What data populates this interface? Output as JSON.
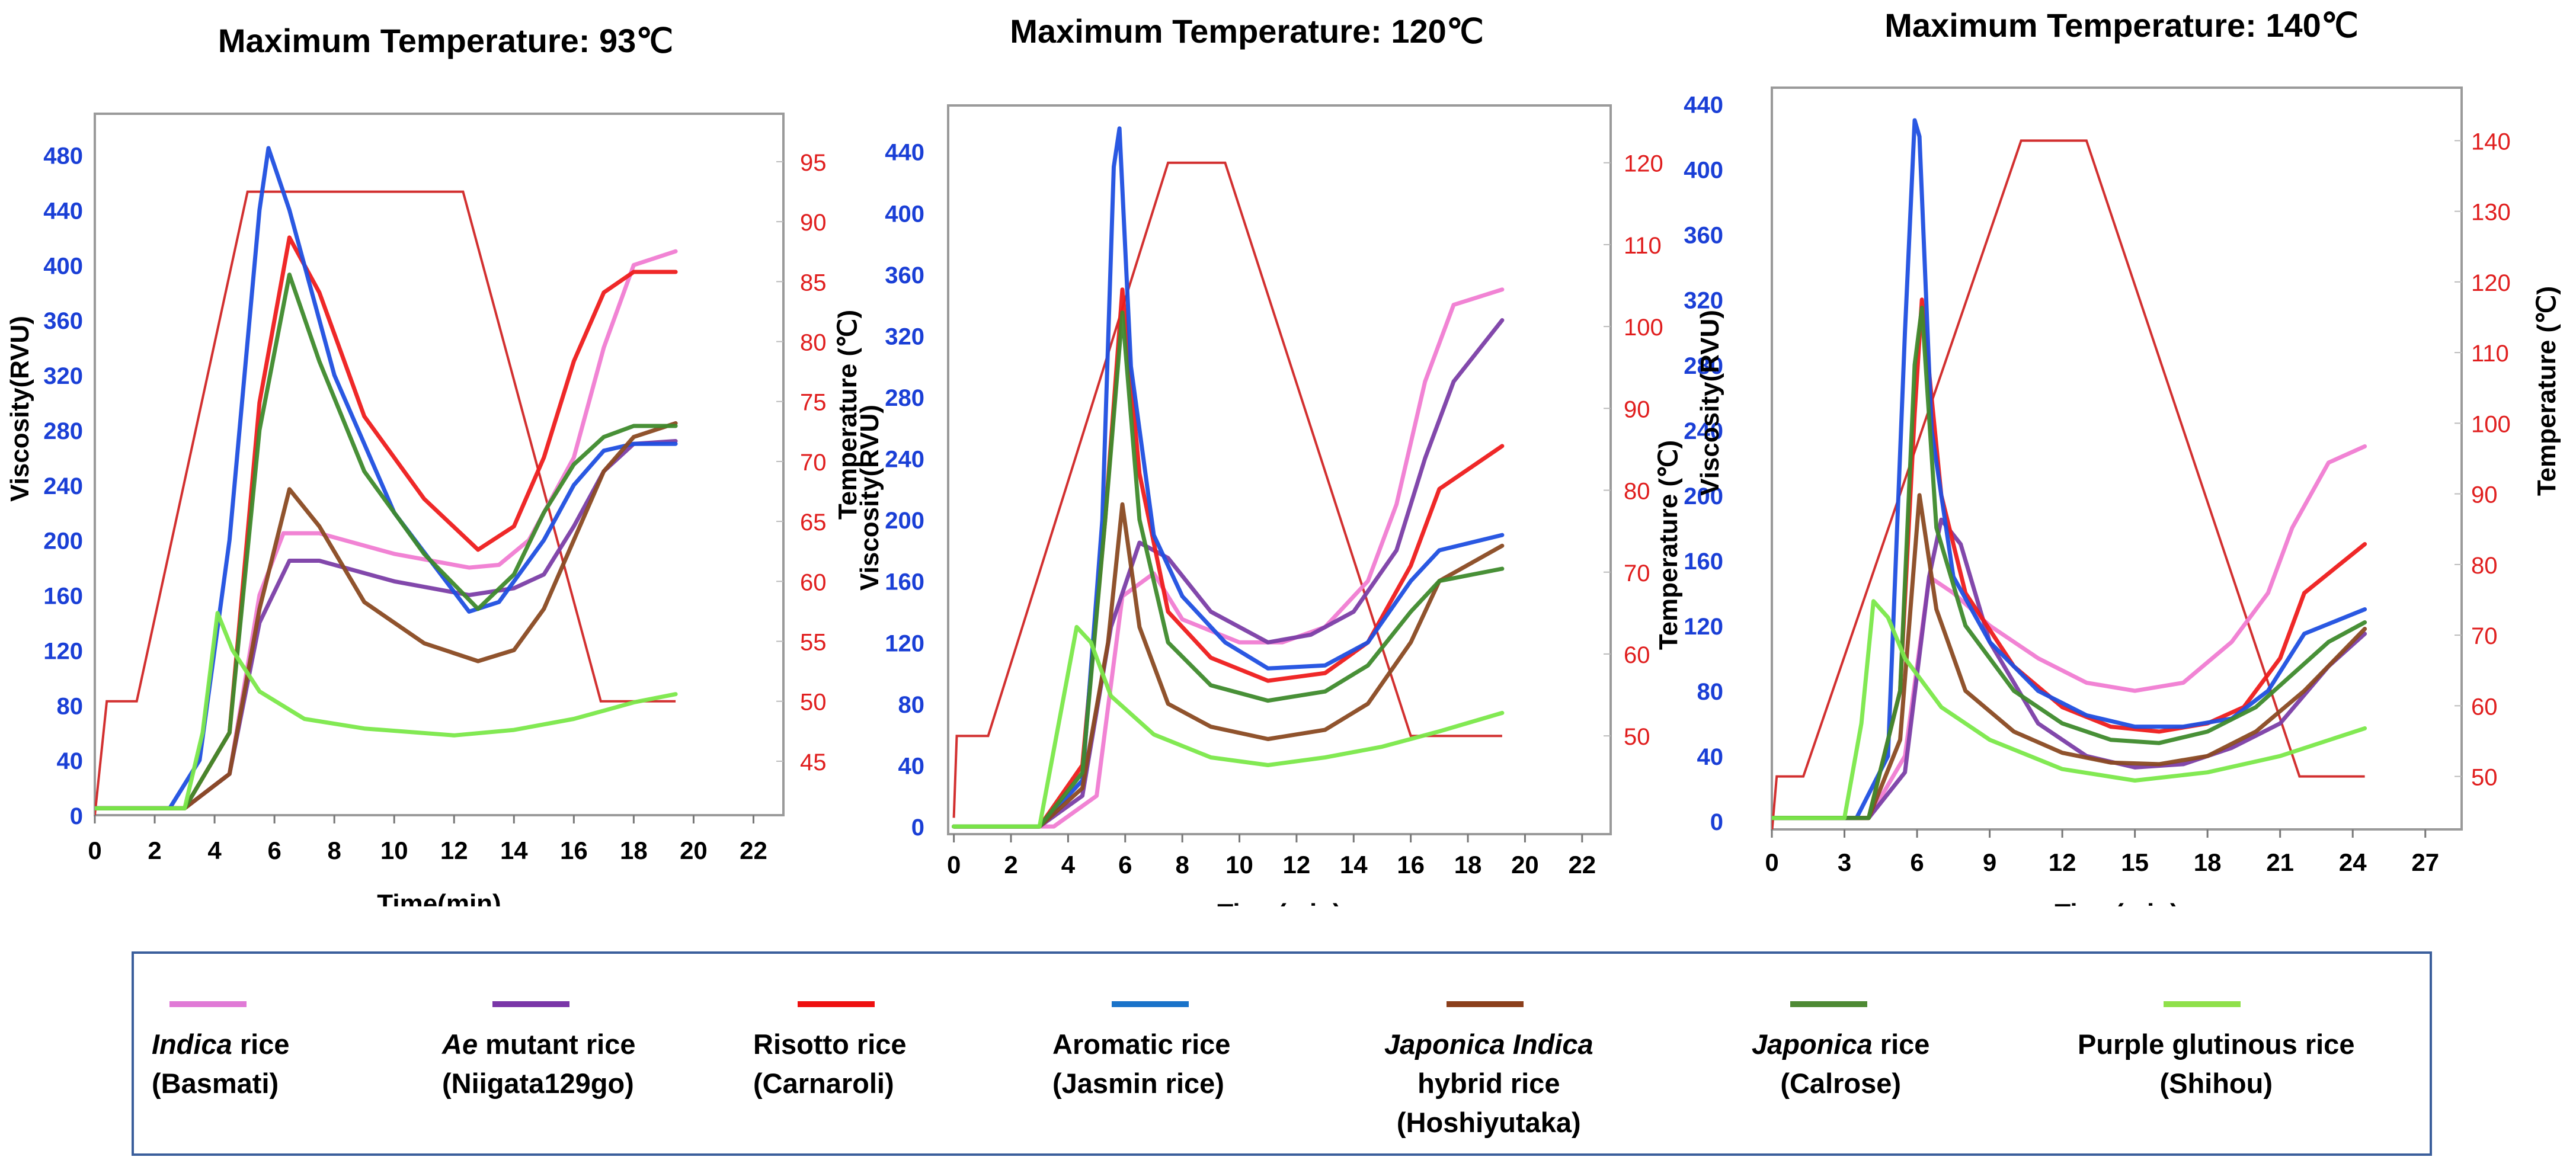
{
  "colors": {
    "indica": "#f07cd2",
    "ae_mutant": "#7b3ea6",
    "risotto": "#ee1c1c",
    "aromatic": "#1f4fe0",
    "hybrid": "#8a4a22",
    "japonica": "#3e8a2c",
    "purple": "#7be84a",
    "temperature": "#d23030",
    "left_axis": "#1a3fd6",
    "right_axis": "#e01e1e",
    "frame": "#9a9a9a"
  },
  "legend": [
    {
      "key": "indica",
      "color": "#e07ad6",
      "line1_italic": "Indica",
      "line1_rest": " rice",
      "line2": "(Basmati)",
      "line3": ""
    },
    {
      "key": "ae_mutant",
      "color": "#7a36a8",
      "line1_italic": "Ae",
      "line1_rest": " mutant rice",
      "line2": "(Niigata129go)",
      "line3": ""
    },
    {
      "key": "risotto",
      "color": "#ee1010",
      "line1_italic": "",
      "line1_rest": "Risotto rice",
      "line2": "(Carnaroli)",
      "line3": ""
    },
    {
      "key": "aromatic",
      "color": "#1a73c9",
      "line1_italic": "",
      "line1_rest": "Aromatic rice",
      "line2": "(Jasmin rice)",
      "line3": ""
    },
    {
      "key": "hybrid",
      "color": "#8b3f1c",
      "line1_italic": "Japonica Indica",
      "line1_rest": "",
      "line2": "hybrid rice",
      "line3": "(Hoshiyutaka)"
    },
    {
      "key": "japonica",
      "color": "#4e8a34",
      "line1_italic": "Japonica",
      "line1_rest": " rice",
      "line2": "(Calrose)",
      "line3": ""
    },
    {
      "key": "purple",
      "color": "#8fe04a",
      "line1_italic": "",
      "line1_rest": "Purple glutinous rice",
      "line2": "(Shihou)",
      "line3": ""
    }
  ],
  "chart_data": [
    {
      "type": "line",
      "title": "Maximum Temperature: 93℃",
      "xlabel": "Time(min)",
      "ylabel": "Viscosity(RVU)",
      "y2label": "Temperature (℃)",
      "xlim": [
        0,
        23
      ],
      "ylim": [
        0,
        510
      ],
      "y2lim": [
        40.5,
        99
      ],
      "xticks": [
        "0",
        "2",
        "4",
        "6",
        "8",
        "10",
        "12",
        "14",
        "16",
        "18",
        "20",
        "22"
      ],
      "yticks": [
        "0",
        "40",
        "80",
        "120",
        "160",
        "200",
        "240",
        "280",
        "320",
        "360",
        "400",
        "440",
        "480"
      ],
      "y2ticks": [
        "45",
        "50",
        "55",
        "60",
        "65",
        "70",
        "75",
        "80",
        "85",
        "90",
        "95"
      ],
      "temperature": {
        "name": "Temperature",
        "x": [
          0,
          0.4,
          1.4,
          5.1,
          5.5,
          12.3,
          16.9,
          19.4
        ],
        "values": [
          40.5,
          50,
          50,
          92.5,
          92.5,
          92.5,
          50,
          50
        ]
      },
      "series": [
        {
          "name": "Indica rice (Basmati)",
          "key": "indica",
          "x": [
            0,
            3,
            4.5,
            5.5,
            6.3,
            7.5,
            10,
            12.5,
            13.5,
            14.5,
            16,
            17,
            18,
            19.4
          ],
          "values": [
            5,
            5,
            30,
            160,
            205,
            205,
            190,
            180,
            182,
            200,
            260,
            340,
            400,
            410
          ]
        },
        {
          "name": "Ae mutant rice (Niigata129go)",
          "key": "ae_mutant",
          "x": [
            0,
            3,
            4.5,
            5.5,
            6.5,
            7.5,
            10,
            12.5,
            14,
            15,
            16,
            17,
            18,
            19.4
          ],
          "values": [
            5,
            5,
            30,
            140,
            185,
            185,
            170,
            160,
            165,
            175,
            210,
            250,
            270,
            272
          ]
        },
        {
          "name": "Risotto rice (Carnaroli)",
          "key": "risotto",
          "x": [
            0,
            3,
            4.5,
            5.5,
            6.5,
            7.5,
            9,
            11,
            12.8,
            14,
            15,
            16,
            17,
            18,
            19.4
          ],
          "values": [
            5,
            5,
            60,
            300,
            420,
            380,
            290,
            230,
            193,
            210,
            260,
            330,
            380,
            395,
            395
          ]
        },
        {
          "name": "Aromatic rice (Jasmin rice)",
          "key": "aromatic",
          "x": [
            0,
            2.5,
            3.5,
            4.5,
            5.5,
            5.8,
            6.5,
            8,
            10,
            12.5,
            13.5,
            15,
            16,
            17,
            18,
            19.4
          ],
          "values": [
            5,
            5,
            40,
            200,
            440,
            485,
            440,
            320,
            220,
            148,
            155,
            200,
            240,
            265,
            270,
            270
          ]
        },
        {
          "name": "Japonica Indica hybrid rice (Hoshiyutaka)",
          "key": "hybrid",
          "x": [
            0,
            3,
            4.5,
            5.5,
            6.5,
            7.5,
            9,
            11,
            12.8,
            14,
            15,
            16,
            17,
            18,
            19.4
          ],
          "values": [
            5,
            5,
            30,
            150,
            237,
            210,
            155,
            125,
            112,
            120,
            150,
            200,
            250,
            275,
            285
          ]
        },
        {
          "name": "Japonica rice (Calrose)",
          "key": "japonica",
          "x": [
            0,
            3,
            4.5,
            5.5,
            6.5,
            7.5,
            9,
            11,
            12.8,
            14,
            15,
            16,
            17,
            18,
            19.4
          ],
          "values": [
            5,
            5,
            60,
            280,
            393,
            330,
            250,
            190,
            150,
            175,
            220,
            255,
            275,
            283,
            283
          ]
        },
        {
          "name": "Purple glutinous rice (Shihou)",
          "key": "purple",
          "x": [
            0,
            3,
            3.6,
            4.1,
            4.6,
            5.5,
            7,
            9,
            12,
            14,
            16,
            17,
            18,
            19.4
          ],
          "values": [
            5,
            5,
            60,
            147,
            120,
            90,
            70,
            63,
            58,
            62,
            70,
            76,
            82,
            88
          ]
        }
      ]
    },
    {
      "type": "line",
      "title": "Maximum Temperature: 120℃",
      "xlabel": "Time(min)",
      "ylabel": "Viscosity(RVU)",
      "y2label": "Temperature (℃)",
      "xlim": [
        -0.2,
        23
      ],
      "ylim": [
        -5,
        470
      ],
      "y2lim": [
        38,
        127
      ],
      "xticks": [
        "0",
        "2",
        "4",
        "6",
        "8",
        "10",
        "12",
        "14",
        "16",
        "18",
        "20",
        "22"
      ],
      "yticks": [
        "0",
        "40",
        "80",
        "120",
        "160",
        "200",
        "240",
        "280",
        "320",
        "360",
        "400",
        "440"
      ],
      "y2ticks": [
        "50",
        "60",
        "70",
        "80",
        "90",
        "100",
        "110",
        "120"
      ],
      "temperature": {
        "name": "Temperature",
        "x": [
          0,
          0.1,
          1.2,
          7.5,
          9.5,
          16,
          19.2
        ],
        "values": [
          40,
          50,
          50,
          120,
          120,
          50,
          50
        ]
      },
      "series": [
        {
          "name": "Indica rice (Basmati)",
          "key": "indica",
          "x": [
            0,
            3.5,
            5,
            5.9,
            7,
            8,
            10,
            11.5,
            13,
            14.5,
            15.5,
            16.5,
            17.5,
            19.2
          ],
          "values": [
            0,
            0,
            20,
            150,
            165,
            135,
            120,
            120,
            130,
            160,
            210,
            290,
            340,
            350
          ]
        },
        {
          "name": "Ae mutant rice (Niigata129go)",
          "key": "ae_mutant",
          "x": [
            0,
            3,
            4.5,
            5.5,
            6.5,
            7.5,
            9,
            11,
            12.5,
            14,
            15.5,
            16.5,
            17.5,
            19.2
          ],
          "values": [
            0,
            0,
            20,
            130,
            185,
            175,
            140,
            120,
            125,
            140,
            180,
            240,
            290,
            330
          ]
        },
        {
          "name": "Risotto rice (Carnaroli)",
          "key": "risotto",
          "x": [
            0,
            3,
            4.5,
            5.3,
            5.9,
            6.5,
            7.5,
            9,
            11,
            13,
            14.5,
            16,
            17,
            19.2
          ],
          "values": [
            0,
            0,
            40,
            200,
            350,
            230,
            140,
            110,
            95,
            100,
            120,
            170,
            220,
            248
          ]
        },
        {
          "name": "Aromatic rice (Jasmin rice)",
          "key": "aromatic",
          "x": [
            0,
            3,
            4.5,
            5.2,
            5.6,
            5.8,
            6.2,
            7,
            8,
            9.5,
            11,
            13,
            14.5,
            16,
            17,
            19.2
          ],
          "values": [
            0,
            0,
            30,
            200,
            430,
            455,
            300,
            190,
            150,
            120,
            103,
            105,
            120,
            160,
            180,
            190
          ]
        },
        {
          "name": "Japonica Indica hybrid rice (Hoshiyutaka)",
          "key": "hybrid",
          "x": [
            0,
            3,
            4.5,
            5.4,
            5.9,
            6.5,
            7.5,
            9,
            11,
            13,
            14.5,
            16,
            17,
            19.2
          ],
          "values": [
            0,
            0,
            25,
            120,
            210,
            130,
            80,
            65,
            57,
            63,
            80,
            120,
            160,
            183
          ]
        },
        {
          "name": "Japonica rice (Calrose)",
          "key": "japonica",
          "x": [
            0,
            3,
            4.5,
            5.3,
            5.9,
            6.5,
            7.5,
            9,
            11,
            13,
            14.5,
            16,
            17,
            19.2
          ],
          "values": [
            0,
            0,
            35,
            200,
            335,
            200,
            120,
            92,
            82,
            88,
            105,
            140,
            160,
            168
          ]
        },
        {
          "name": "Purple glutinous rice (Shihou)",
          "key": "purple",
          "x": [
            0,
            3,
            3.8,
            4.3,
            4.8,
            5.5,
            7,
            9,
            11,
            13,
            15,
            17,
            19.2
          ],
          "values": [
            0,
            0,
            80,
            130,
            120,
            85,
            60,
            45,
            40,
            45,
            52,
            62,
            74
          ]
        }
      ]
    },
    {
      "type": "line",
      "title": "Maximum Temperature: 140℃",
      "xlabel": "Time(min)",
      "ylabel": "Viscosity(RVU)",
      "y2label": "Temperature (℃)",
      "xlim": [
        0,
        28.5
      ],
      "ylim": [
        -5,
        450
      ],
      "y2lim": [
        42.5,
        147.5
      ],
      "xticks": [
        "0",
        "3",
        "6",
        "9",
        "12",
        "15",
        "18",
        "21",
        "24",
        "27"
      ],
      "yticks": [
        "0",
        "40",
        "80",
        "120",
        "160",
        "200",
        "240",
        "280",
        "320",
        "360",
        "400",
        "440"
      ],
      "y2ticks": [
        "50",
        "60",
        "70",
        "80",
        "90",
        "100",
        "110",
        "120",
        "130",
        "140"
      ],
      "temperature": {
        "name": "Temperature",
        "x": [
          0,
          0.2,
          1.3,
          10.3,
          13,
          21.8,
          22,
          24.5
        ],
        "values": [
          42,
          50,
          50,
          140,
          140,
          50,
          50,
          50
        ]
      },
      "series": [
        {
          "name": "Indica rice (Basmati)",
          "key": "indica",
          "x": [
            0,
            4,
            5.5,
            6.5,
            7.5,
            9,
            11,
            13,
            15,
            17,
            19,
            20.5,
            21.5,
            23,
            24.5
          ],
          "values": [
            2,
            2,
            40,
            150,
            140,
            120,
            100,
            85,
            80,
            85,
            110,
            140,
            180,
            220,
            230
          ]
        },
        {
          "name": "Ae mutant rice (Niigata129go)",
          "key": "ae_mutant",
          "x": [
            0,
            4,
            5.5,
            6.5,
            7,
            7.8,
            9,
            11,
            13,
            15,
            17,
            19,
            21,
            23,
            24.5
          ],
          "values": [
            2,
            2,
            30,
            150,
            185,
            170,
            110,
            60,
            40,
            33,
            35,
            45,
            60,
            95,
            115
          ]
        },
        {
          "name": "Risotto rice (Carnaroli)",
          "key": "risotto",
          "x": [
            0,
            4,
            5.3,
            5.9,
            6.2,
            7,
            8,
            10,
            12,
            14,
            16,
            18,
            19.5,
            21,
            22,
            24.5
          ],
          "values": [
            2,
            2,
            80,
            250,
            320,
            200,
            140,
            95,
            70,
            58,
            55,
            60,
            70,
            100,
            140,
            170
          ]
        },
        {
          "name": "Aromatic rice (Jasmin rice)",
          "key": "aromatic",
          "x": [
            0,
            3.5,
            4.8,
            5.5,
            5.9,
            6.1,
            6.6,
            7.5,
            9,
            11,
            13,
            15,
            17,
            19,
            20.5,
            22,
            24.5
          ],
          "values": [
            2,
            2,
            40,
            300,
            430,
            420,
            240,
            150,
            110,
            80,
            65,
            58,
            58,
            63,
            80,
            115,
            130
          ]
        },
        {
          "name": "Japonica Indica hybrid rice (Hoshiyutaka)",
          "key": "hybrid",
          "x": [
            0,
            4,
            5.3,
            6.1,
            6.8,
            8,
            10,
            12,
            14,
            16,
            18,
            20,
            22,
            24.5
          ],
          "values": [
            2,
            2,
            50,
            200,
            130,
            80,
            55,
            42,
            36,
            35,
            40,
            55,
            80,
            118
          ]
        },
        {
          "name": "Japonica rice (Calrose)",
          "key": "japonica",
          "x": [
            0,
            4,
            5.3,
            5.9,
            6.2,
            6.8,
            8,
            10,
            12,
            14,
            16,
            18,
            20,
            21.5,
            23,
            24.5
          ],
          "values": [
            2,
            2,
            80,
            280,
            315,
            180,
            120,
            80,
            60,
            50,
            48,
            55,
            70,
            90,
            110,
            122
          ]
        },
        {
          "name": "Purple glutinous rice (Shihou)",
          "key": "purple",
          "x": [
            0,
            3,
            3.7,
            4.2,
            4.8,
            5.5,
            7,
            9,
            12,
            15,
            18,
            21,
            24.5
          ],
          "values": [
            2,
            2,
            60,
            135,
            125,
            100,
            70,
            50,
            32,
            25,
            30,
            40,
            57
          ]
        }
      ]
    }
  ]
}
